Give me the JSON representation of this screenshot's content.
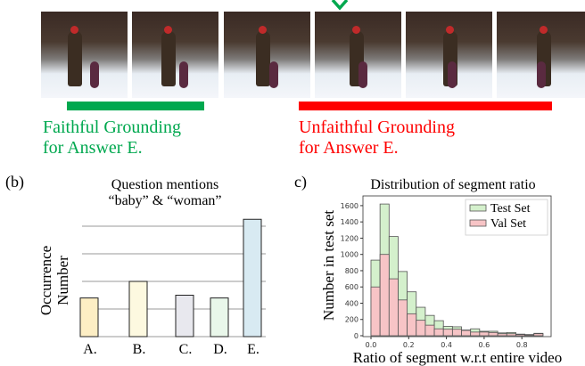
{
  "panel_a": {
    "frames": 6,
    "faithful_caption": [
      "Faithful Grounding",
      "for Answer E."
    ],
    "unfaithful_caption": [
      "Unfaithful Grounding",
      "for Answer E."
    ],
    "colors": {
      "faithful": "#00a84f",
      "unfaithful": "#ff0000"
    }
  },
  "panel_b_label": "(b)",
  "panel_c_label": "(c)",
  "chart_data": [
    {
      "type": "bar",
      "title": [
        "Question mentions",
        "“baby” & “woman”"
      ],
      "ylabel": [
        "Occurrence",
        "Number"
      ],
      "xlabel": "",
      "categories": [
        "A.",
        "B.",
        "C.",
        "D.",
        "E."
      ],
      "values": [
        1.4,
        2.0,
        1.5,
        1.4,
        4.25
      ],
      "ylim": [
        0,
        4.6
      ],
      "grid": true,
      "colors": [
        "#fdeec4",
        "#fdf9e0",
        "#e8e8ee",
        "#e9f7ea",
        "#d8eaf2"
      ]
    },
    {
      "type": "bar",
      "title": "Distribution of segment ratio",
      "xlabel": "Ratio of segment w.r.t entire video",
      "ylabel": "Number in test set",
      "xlim": [
        -0.04,
        0.97
      ],
      "ylim": [
        0,
        1720
      ],
      "xticks": [
        "0.0",
        "0.2",
        "0.4",
        "0.6",
        "0.8"
      ],
      "yticks": [
        "0",
        "200",
        "400",
        "600",
        "800",
        "1000",
        "1200",
        "1400",
        "1600"
      ],
      "bin_width": 0.048,
      "legend": "top-right",
      "series": [
        {
          "name": "Test Set",
          "color": "#d4f0cc",
          "values": [
            930,
            1620,
            1220,
            790,
            540,
            350,
            250,
            185,
            115,
            110,
            70,
            85,
            55,
            55,
            35,
            40,
            20,
            15,
            30
          ]
        },
        {
          "name": "Val Set",
          "color": "#f7c4c6",
          "values": [
            600,
            1000,
            700,
            440,
            270,
            190,
            130,
            85,
            80,
            80,
            65,
            45,
            45,
            40,
            25,
            25,
            15,
            10,
            25
          ]
        }
      ]
    }
  ]
}
